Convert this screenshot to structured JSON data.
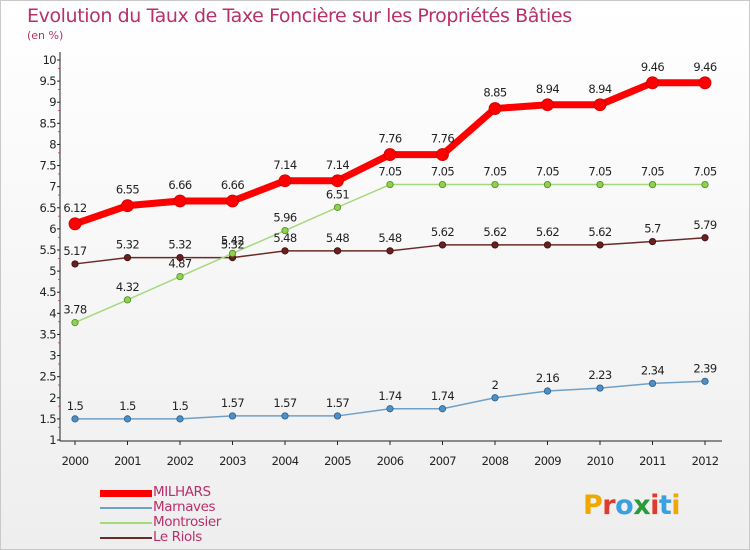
{
  "title": "Evolution du Taux de Taxe Foncière sur les Propriétés Bâties",
  "unit": "(en %)",
  "brand": "Proxiti",
  "chart_data": {
    "type": "line",
    "x": [
      "2000",
      "2001",
      "2002",
      "2003",
      "2004",
      "2005",
      "2006",
      "2007",
      "2008",
      "2009",
      "2010",
      "2011",
      "2012"
    ],
    "ylim": [
      1,
      10
    ],
    "yticks": [
      "1",
      "1.5",
      "2",
      "2.5",
      "3",
      "3.5",
      "4",
      "4.5",
      "5",
      "5.5",
      "6",
      "6.5",
      "7",
      "7.5",
      "8",
      "8.5",
      "9",
      "9.5",
      "10"
    ],
    "grid": false,
    "legend_position": "bottom-left",
    "series": [
      {
        "name": "MILHARS",
        "color": "#ff0000",
        "values": [
          6.12,
          6.55,
          6.66,
          6.66,
          7.14,
          7.14,
          7.76,
          7.76,
          8.85,
          8.94,
          8.94,
          9.46,
          9.46
        ],
        "labels": [
          "6.12",
          "6.55",
          "6.66",
          "6.66",
          "7.14",
          "7.14",
          "7.76",
          "7.76",
          "8.85",
          "8.94",
          "8.94",
          "9.46",
          "9.46"
        ]
      },
      {
        "name": "Marnaves",
        "color": "#6fa0c8",
        "values": [
          1.5,
          1.5,
          1.5,
          1.57,
          1.57,
          1.57,
          1.74,
          1.74,
          2,
          2.16,
          2.23,
          2.34,
          2.39
        ],
        "labels": [
          "1.5",
          "1.5",
          "1.5",
          "1.57",
          "1.57",
          "1.57",
          "1.74",
          "1.74",
          "2",
          "2.16",
          "2.23",
          "2.34",
          "2.39"
        ]
      },
      {
        "name": "Montrosier",
        "color": "#a6d97e",
        "values": [
          3.78,
          4.32,
          4.87,
          5.42,
          5.96,
          6.51,
          7.05,
          7.05,
          7.05,
          7.05,
          7.05,
          7.05,
          7.05
        ],
        "labels": [
          "3.78",
          "4.32",
          "4.87",
          "5.42",
          "5.96",
          "6.51",
          "7.05",
          "7.05",
          "7.05",
          "7.05",
          "7.05",
          "7.05",
          "7.05"
        ]
      },
      {
        "name": "Le Riols",
        "color": "#6b2a2a",
        "values": [
          5.17,
          5.32,
          5.32,
          5.32,
          5.48,
          5.48,
          5.48,
          5.62,
          5.62,
          5.62,
          5.62,
          5.7,
          5.79
        ],
        "labels": [
          "5.17",
          "5.32",
          "5.32",
          "5.32",
          "5.48",
          "5.48",
          "5.48",
          "5.62",
          "5.62",
          "5.62",
          "5.62",
          "5.7",
          "5.79"
        ]
      }
    ]
  }
}
